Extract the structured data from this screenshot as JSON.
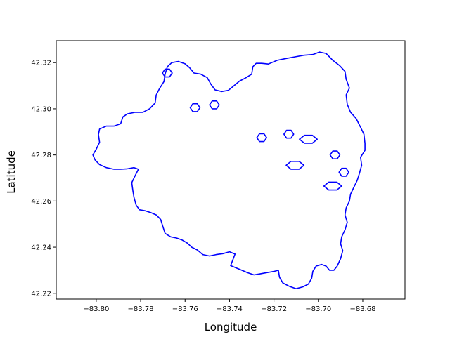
{
  "chart_data": {
    "type": "map-outline",
    "title": "",
    "xlabel": "Longitude",
    "ylabel": "Latitude",
    "xlim": [
      -83.818,
      -83.661
    ],
    "ylim": [
      42.2175,
      42.3295
    ],
    "xticks": [
      -83.8,
      -83.78,
      -83.76,
      -83.74,
      -83.72,
      -83.7,
      -83.68
    ],
    "xtick_labels": [
      "−83.80",
      "−83.78",
      "−83.76",
      "−83.74",
      "−83.72",
      "−83.70",
      "−83.68"
    ],
    "yticks": [
      42.22,
      42.24,
      42.26,
      42.28,
      42.3,
      42.32
    ],
    "ytick_labels": [
      "42.22",
      "42.24",
      "42.26",
      "42.28",
      "42.30",
      "42.32"
    ],
    "line_color": "#0000ff",
    "grid": false,
    "outer_boundary": [
      [
        -83.7255,
        42.3197
      ],
      [
        -83.7225,
        42.3194
      ],
      [
        -83.7185,
        42.321
      ],
      [
        -83.7145,
        42.3218
      ],
      [
        -83.7105,
        42.3225
      ],
      [
        -83.7065,
        42.3232
      ],
      [
        -83.7025,
        42.3235
      ],
      [
        -83.6995,
        42.3246
      ],
      [
        -83.6965,
        42.324
      ],
      [
        -83.6935,
        42.321
      ],
      [
        -83.6905,
        42.3188
      ],
      [
        -83.688,
        42.3162
      ],
      [
        -83.6875,
        42.3128
      ],
      [
        -83.686,
        42.309
      ],
      [
        -83.6875,
        42.306
      ],
      [
        -83.687,
        42.302
      ],
      [
        -83.6855,
        42.2985
      ],
      [
        -83.683,
        42.2958
      ],
      [
        -83.681,
        42.292
      ],
      [
        -83.6795,
        42.289
      ],
      [
        -83.679,
        42.285
      ],
      [
        -83.679,
        42.282
      ],
      [
        -83.681,
        42.279
      ],
      [
        -83.6805,
        42.2755
      ],
      [
        -83.6815,
        42.272
      ],
      [
        -83.6825,
        42.269
      ],
      [
        -83.684,
        42.266
      ],
      [
        -83.6855,
        42.263
      ],
      [
        -83.686,
        42.26
      ],
      [
        -83.6875,
        42.257
      ],
      [
        -83.688,
        42.254
      ],
      [
        -83.687,
        42.2508
      ],
      [
        -83.688,
        42.2475
      ],
      [
        -83.6895,
        42.2445
      ],
      [
        -83.69,
        42.2415
      ],
      [
        -83.689,
        42.2385
      ],
      [
        -83.69,
        42.235
      ],
      [
        -83.6915,
        42.2318
      ],
      [
        -83.693,
        42.23
      ],
      [
        -83.695,
        42.23
      ],
      [
        -83.6965,
        42.2318
      ],
      [
        -83.6985,
        42.2325
      ],
      [
        -83.701,
        42.2318
      ],
      [
        -83.7025,
        42.2295
      ],
      [
        -83.703,
        42.2265
      ],
      [
        -83.7045,
        42.224
      ],
      [
        -83.707,
        42.2228
      ],
      [
        -83.71,
        42.222
      ],
      [
        -83.713,
        42.223
      ],
      [
        -83.716,
        42.2245
      ],
      [
        -83.7175,
        42.227
      ],
      [
        -83.718,
        42.23
      ],
      [
        -83.72,
        42.2295
      ],
      [
        -83.723,
        42.229
      ],
      [
        -83.726,
        42.2285
      ],
      [
        -83.729,
        42.228
      ],
      [
        -83.732,
        42.229
      ],
      [
        -83.7345,
        42.23
      ],
      [
        -83.737,
        42.231
      ],
      [
        -83.7395,
        42.232
      ],
      [
        -83.7385,
        42.2345
      ],
      [
        -83.7375,
        42.237
      ],
      [
        -83.74,
        42.238
      ],
      [
        -83.743,
        42.2372
      ],
      [
        -83.746,
        42.2368
      ],
      [
        -83.749,
        42.2362
      ],
      [
        -83.752,
        42.2368
      ],
      [
        -83.7545,
        42.2388
      ],
      [
        -83.757,
        42.24
      ],
      [
        -83.759,
        42.2418
      ],
      [
        -83.7615,
        42.2432
      ],
      [
        -83.764,
        42.244
      ],
      [
        -83.7665,
        42.2445
      ],
      [
        -83.769,
        42.246
      ],
      [
        -83.77,
        42.249
      ],
      [
        -83.771,
        42.252
      ],
      [
        -83.773,
        42.254
      ],
      [
        -83.7755,
        42.255
      ],
      [
        -83.778,
        42.2558
      ],
      [
        -83.7805,
        42.2562
      ],
      [
        -83.782,
        42.2582
      ],
      [
        -83.783,
        42.2615
      ],
      [
        -83.7835,
        42.2645
      ],
      [
        -83.784,
        42.268
      ],
      [
        -83.7825,
        42.271
      ],
      [
        -83.781,
        42.2738
      ],
      [
        -83.783,
        42.2745
      ],
      [
        -83.786,
        42.274
      ],
      [
        -83.789,
        42.2738
      ],
      [
        -83.792,
        42.2738
      ],
      [
        -83.7955,
        42.2745
      ],
      [
        -83.7985,
        42.2758
      ],
      [
        -83.8005,
        42.2778
      ],
      [
        -83.8015,
        42.28
      ],
      [
        -83.8,
        42.2825
      ],
      [
        -83.7985,
        42.2855
      ],
      [
        -83.799,
        42.2888
      ],
      [
        -83.7985,
        42.2912
      ],
      [
        -83.7955,
        42.2925
      ],
      [
        -83.792,
        42.2925
      ],
      [
        -83.789,
        42.2935
      ],
      [
        -83.788,
        42.2965
      ],
      [
        -83.786,
        42.2978
      ],
      [
        -83.7825,
        42.2985
      ],
      [
        -83.779,
        42.2985
      ],
      [
        -83.776,
        42.3
      ],
      [
        -83.7735,
        42.3025
      ],
      [
        -83.773,
        42.306
      ],
      [
        -83.7715,
        42.3088
      ],
      [
        -83.7695,
        42.3118
      ],
      [
        -83.769,
        42.315
      ],
      [
        -83.768,
        42.3182
      ],
      [
        -83.766,
        42.32
      ],
      [
        -83.763,
        42.3205
      ],
      [
        -83.76,
        42.3195
      ],
      [
        -83.758,
        42.3178
      ],
      [
        -83.756,
        42.3155
      ],
      [
        -83.753,
        42.315
      ],
      [
        -83.75,
        42.3135
      ],
      [
        -83.7485,
        42.3108
      ],
      [
        -83.7465,
        42.3082
      ],
      [
        -83.7435,
        42.3075
      ],
      [
        -83.7405,
        42.308
      ],
      [
        -83.738,
        42.31
      ],
      [
        -83.7355,
        42.312
      ],
      [
        -83.7325,
        42.3135
      ],
      [
        -83.73,
        42.315
      ],
      [
        -83.7295,
        42.3182
      ],
      [
        -83.728,
        42.3197
      ],
      [
        -83.7255,
        42.3197
      ]
    ],
    "holes": [
      {
        "center": [
          -83.768,
          42.3155
        ],
        "rx": 0.0022,
        "ry": 0.0017
      },
      {
        "center": [
          -83.7555,
          42.3005
        ],
        "rx": 0.0022,
        "ry": 0.0017
      },
      {
        "center": [
          -83.7468,
          42.3017
        ],
        "rx": 0.0022,
        "ry": 0.0017
      },
      {
        "center": [
          -83.7255,
          42.2875
        ],
        "rx": 0.0022,
        "ry": 0.0017
      },
      {
        "center": [
          -83.7133,
          42.289
        ],
        "rx": 0.0022,
        "ry": 0.0017
      },
      {
        "center": [
          -83.7045,
          42.2868
        ],
        "rx": 0.004,
        "ry": 0.0017
      },
      {
        "center": [
          -83.6925,
          42.28
        ],
        "rx": 0.0022,
        "ry": 0.0017
      },
      {
        "center": [
          -83.7105,
          42.2755
        ],
        "rx": 0.004,
        "ry": 0.0017
      },
      {
        "center": [
          -83.6885,
          42.2725
        ],
        "rx": 0.0022,
        "ry": 0.0017
      },
      {
        "center": [
          -83.6935,
          42.2665
        ],
        "rx": 0.004,
        "ry": 0.0017
      }
    ]
  }
}
